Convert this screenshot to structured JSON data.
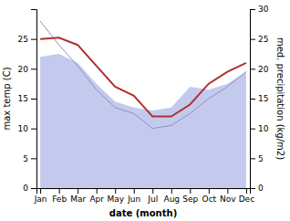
{
  "chart_data": {
    "type": "line",
    "xlabel": "date (month)",
    "ylabel": "max temp (C)",
    "y2label": "med. precipitation (kg/m2)",
    "categories": [
      "Jan",
      "Feb",
      "Mar",
      "Apr",
      "May",
      "Jun",
      "Jul",
      "Aug",
      "Sep",
      "Oct",
      "Nov",
      "Dec"
    ],
    "series": [
      {
        "type": "area",
        "axis": "y2",
        "color": "#b0b8e8",
        "values": [
          22.0,
          22.5,
          21.0,
          17.5,
          14.5,
          13.5,
          13.0,
          13.5,
          17.0,
          16.5,
          17.5,
          19.5
        ]
      },
      {
        "type": "line",
        "axis": "y2",
        "color": "#9090c0",
        "values": [
          28.0,
          24.0,
          20.5,
          16.5,
          13.5,
          12.5,
          10.0,
          10.5,
          12.5,
          15.0,
          17.0,
          19.5
        ]
      },
      {
        "type": "line",
        "color": "#b03030",
        "values": [
          25.0,
          25.2,
          24.0,
          20.5,
          17.0,
          15.5,
          12.0,
          12.0,
          14.0,
          17.5,
          19.5,
          21.0
        ]
      }
    ],
    "ylim": [
      0,
      30
    ],
    "yticks": [
      0,
      5,
      10,
      15,
      20,
      25
    ],
    "y2lim": [
      0,
      30
    ],
    "y2ticks": [
      0,
      5,
      10,
      15,
      20,
      25,
      30
    ],
    "grid": false
  }
}
